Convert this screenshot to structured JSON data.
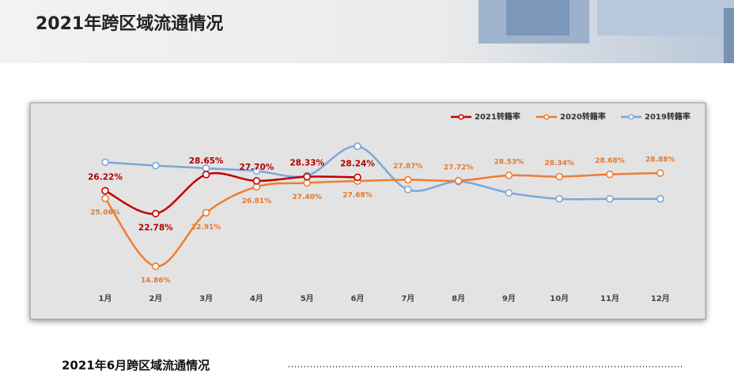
{
  "page_title": "2021年跨区域流通情况",
  "section_title": "2021年6月跨区域流通情况",
  "chart_data": {
    "type": "line",
    "categories": [
      "1月",
      "2月",
      "3月",
      "4月",
      "5月",
      "6月",
      "7月",
      "8月",
      "9月",
      "10月",
      "11月",
      "12月"
    ],
    "ylim": [
      10,
      35
    ],
    "legend": "top-right",
    "series": [
      {
        "name": "2021转籍率",
        "color": "#c00000",
        "values": [
          26.22,
          22.78,
          28.65,
          27.7,
          28.33,
          28.24,
          null,
          null,
          null,
          null,
          null,
          null
        ],
        "value_labels": [
          "26.22%",
          "22.78%",
          "28.65%",
          "27.70%",
          "28.33%",
          "28.24%",
          null,
          null,
          null,
          null,
          null,
          null
        ]
      },
      {
        "name": "2020转籍率",
        "color": "#ed7d31",
        "values": [
          25.06,
          14.86,
          22.91,
          26.81,
          27.4,
          27.68,
          27.87,
          27.72,
          28.53,
          28.34,
          28.68,
          28.88
        ],
        "value_labels": [
          "25.06%",
          "14.86%",
          "22.91%",
          "26.81%",
          "27.40%",
          "27.68%",
          "27.87%",
          "27.72%",
          "28.53%",
          "28.34%",
          "28.68%",
          "28.88%"
        ]
      },
      {
        "name": "2019转籍率",
        "color": "#7ba7d7",
        "values": [
          30.5,
          30.0,
          29.6,
          29.2,
          28.5,
          32.9,
          26.4,
          27.6,
          25.9,
          25.0,
          25.0,
          25.0
        ]
      }
    ]
  }
}
